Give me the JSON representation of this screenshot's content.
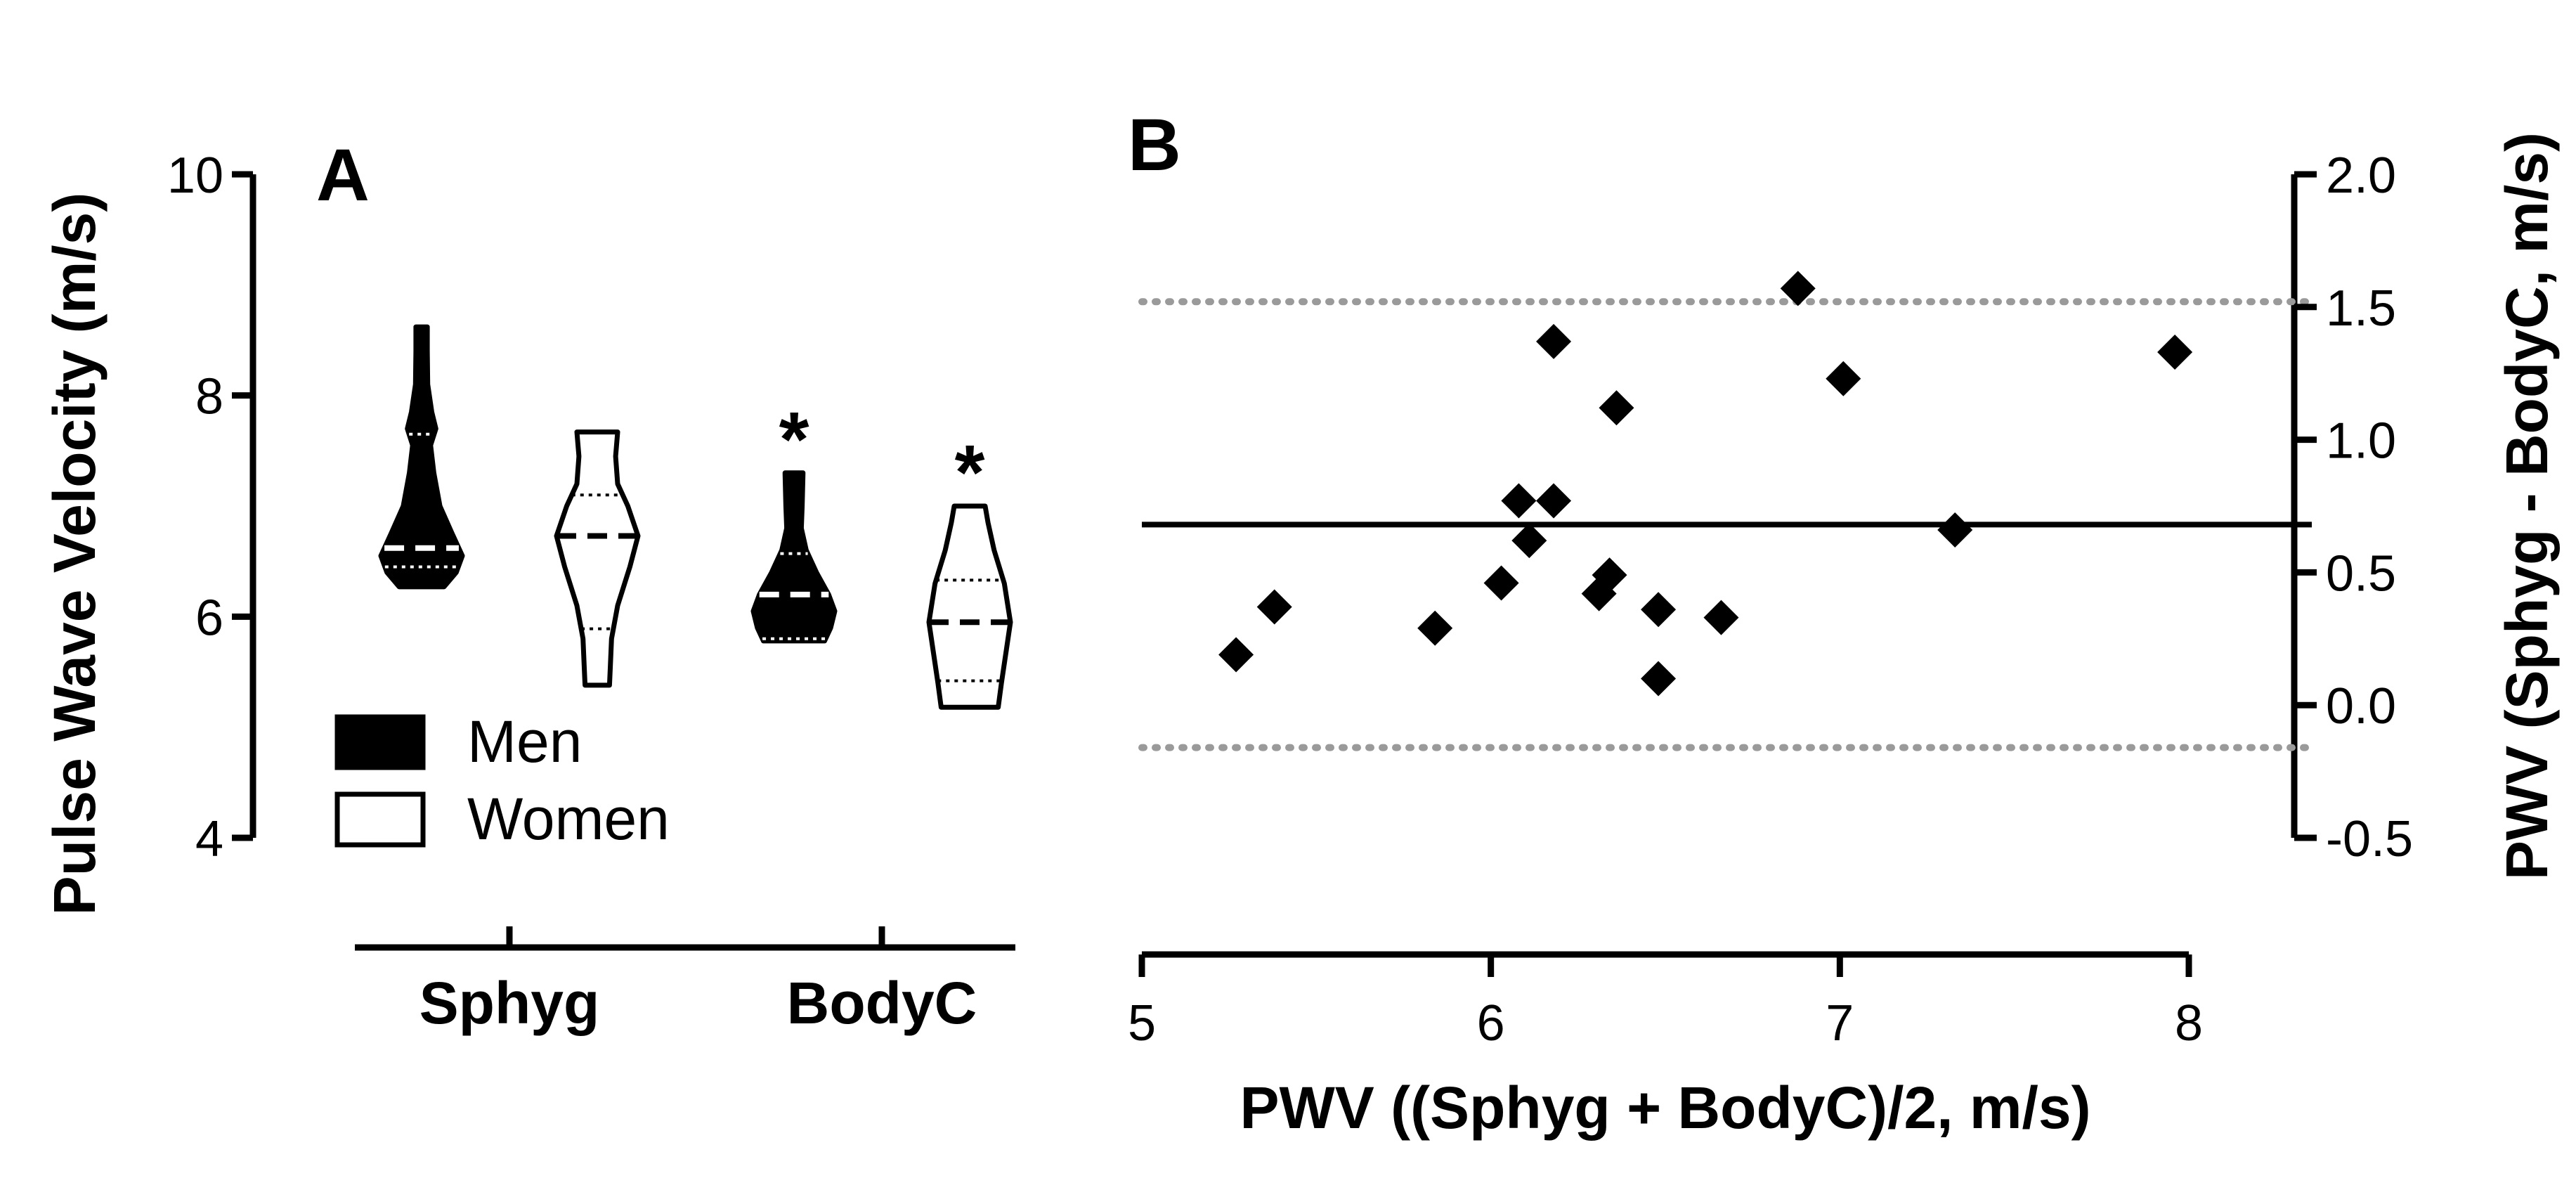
{
  "chart_data": [
    {
      "panel": "A",
      "type": "violin",
      "ylabel": "Pulse Wave Velocity (m/s)",
      "ylim": [
        4,
        10
      ],
      "yticks": [
        "4",
        "6",
        "8",
        "10"
      ],
      "categories": [
        "Sphyg",
        "BodyC"
      ],
      "legend": [
        {
          "label": "Men",
          "fill": "#000000"
        },
        {
          "label": "Women",
          "fill": "#ffffff"
        }
      ],
      "annotations": [
        {
          "category": "BodyC",
          "group": "Men",
          "text": "*"
        },
        {
          "category": "BodyC",
          "group": "Women",
          "text": "*"
        }
      ],
      "violins": [
        {
          "category": "Sphyg",
          "group": "Men",
          "min": 6.27,
          "max": 8.62,
          "median": 6.62,
          "q1": 6.45,
          "q3": 7.65,
          "shape": [
            [
              6.27,
              0.55
            ],
            [
              6.4,
              0.85
            ],
            [
              6.55,
              1.0
            ],
            [
              6.75,
              0.75
            ],
            [
              7.0,
              0.45
            ],
            [
              7.3,
              0.3
            ],
            [
              7.55,
              0.22
            ],
            [
              7.7,
              0.35
            ],
            [
              7.85,
              0.25
            ],
            [
              8.1,
              0.15
            ],
            [
              8.4,
              0.14
            ],
            [
              8.62,
              0.14
            ]
          ]
        },
        {
          "category": "Sphyg",
          "group": "Women",
          "min": 5.38,
          "max": 7.67,
          "median": 6.73,
          "q1": 5.89,
          "q3": 7.1,
          "shape": [
            [
              5.38,
              0.3
            ],
            [
              5.55,
              0.32
            ],
            [
              5.8,
              0.35
            ],
            [
              6.1,
              0.5
            ],
            [
              6.45,
              0.8
            ],
            [
              6.73,
              1.0
            ],
            [
              7.0,
              0.75
            ],
            [
              7.2,
              0.5
            ],
            [
              7.45,
              0.45
            ],
            [
              7.67,
              0.5
            ]
          ]
        },
        {
          "category": "BodyC",
          "group": "Men",
          "min": 5.78,
          "max": 7.3,
          "median": 6.2,
          "q1": 5.8,
          "q3": 6.57,
          "shape": [
            [
              5.78,
              0.75
            ],
            [
              5.9,
              0.9
            ],
            [
              6.05,
              1.0
            ],
            [
              6.2,
              0.85
            ],
            [
              6.4,
              0.55
            ],
            [
              6.6,
              0.3
            ],
            [
              6.8,
              0.18
            ],
            [
              7.0,
              0.2
            ],
            [
              7.3,
              0.22
            ]
          ]
        },
        {
          "category": "BodyC",
          "group": "Women",
          "min": 5.18,
          "max": 7.0,
          "median": 5.95,
          "q1": 5.42,
          "q3": 6.33,
          "shape": [
            [
              5.18,
              0.7
            ],
            [
              5.4,
              0.78
            ],
            [
              5.7,
              0.9
            ],
            [
              5.95,
              1.0
            ],
            [
              6.3,
              0.85
            ],
            [
              6.6,
              0.6
            ],
            [
              6.85,
              0.45
            ],
            [
              7.0,
              0.38
            ]
          ]
        }
      ]
    },
    {
      "panel": "B",
      "type": "scatter",
      "xlabel": "PWV ((Sphyg + BodyC)/2, m/s)",
      "ylabel": "PWV (Sphyg - BodyC, m/s)",
      "xlim": [
        5,
        8
      ],
      "ylim": [
        -0.5,
        2.0
      ],
      "xticks": [
        "5",
        "6",
        "7",
        "8"
      ],
      "yticks": [
        "2.0",
        "1.5",
        "1.0",
        "0.5",
        "0.0",
        "-0.5"
      ],
      "mean_line": 0.68,
      "limits_of_agreement": [
        1.52,
        -0.16
      ],
      "points": [
        {
          "x": 5.27,
          "y": 0.19
        },
        {
          "x": 5.38,
          "y": 0.37
        },
        {
          "x": 5.84,
          "y": 0.29
        },
        {
          "x": 6.03,
          "y": 0.46
        },
        {
          "x": 6.08,
          "y": 0.77
        },
        {
          "x": 6.11,
          "y": 0.62
        },
        {
          "x": 6.18,
          "y": 1.37
        },
        {
          "x": 6.18,
          "y": 0.77
        },
        {
          "x": 6.31,
          "y": 0.42
        },
        {
          "x": 6.34,
          "y": 0.49
        },
        {
          "x": 6.36,
          "y": 1.12
        },
        {
          "x": 6.48,
          "y": 0.36
        },
        {
          "x": 6.48,
          "y": 0.1
        },
        {
          "x": 6.66,
          "y": 0.33
        },
        {
          "x": 6.88,
          "y": 1.57
        },
        {
          "x": 7.01,
          "y": 1.23
        },
        {
          "x": 7.33,
          "y": 0.66
        },
        {
          "x": 7.96,
          "y": 1.33
        }
      ]
    }
  ],
  "panel_labels": {
    "a": "A",
    "b": "B"
  },
  "colors": {
    "men_fill": "#000000",
    "women_fill": "#ffffff",
    "limit_line": "#9a9a9a",
    "stroke": "#000000"
  }
}
